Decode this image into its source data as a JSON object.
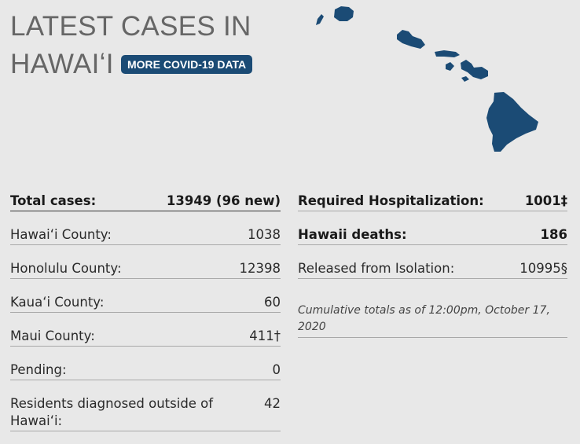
{
  "header": {
    "title_line1": "LATEST CASES IN",
    "title_line2": "HAWAIʻI",
    "more_button": "MORE COVID-19 DATA"
  },
  "map": {
    "color": "#1b4b75",
    "icon": "hawaii-islands-map"
  },
  "left_stats": [
    {
      "label": "Total cases:",
      "value": "13949 (96 new)"
    },
    {
      "label": "Hawaiʻi County:",
      "value": "1038"
    },
    {
      "label": "Honolulu County:",
      "value": "12398"
    },
    {
      "label": "Kauaʻi County:",
      "value": "60"
    },
    {
      "label": "Maui County:",
      "value": "411†"
    },
    {
      "label": "Pending:",
      "value": "0"
    },
    {
      "label": "Residents diagnosed outside of Hawaiʻi:",
      "value": "42"
    }
  ],
  "right_stats": [
    {
      "label": "Required Hospitalization:",
      "value": "1001‡"
    },
    {
      "label": "Hawaii deaths:",
      "value": "186"
    },
    {
      "label": "Released from Isolation:",
      "value": "10995§"
    }
  ],
  "note": "Cumulative totals as of 12:00pm, October 17, 2020"
}
